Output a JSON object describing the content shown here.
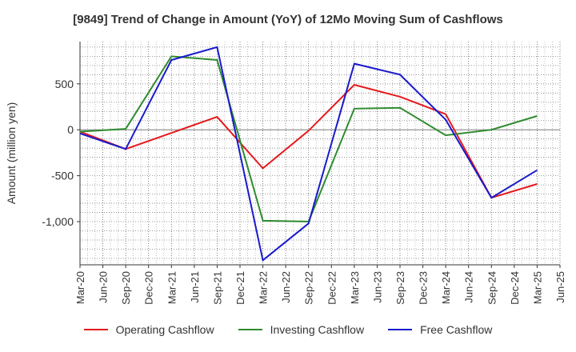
{
  "chart_data": {
    "type": "line",
    "title": "[9849]  Trend of Change in Amount (YoY) of 12Mo Moving Sum of Cashflows",
    "xlabel": "",
    "ylabel": "Amount (million yen)",
    "categories": [
      "Mar-20",
      "Jun-20",
      "Sep-20",
      "Dec-20",
      "Mar-21",
      "Jun-21",
      "Sep-21",
      "Dec-21",
      "Mar-22",
      "Jun-22",
      "Sep-22",
      "Dec-22",
      "Mar-23",
      "Jun-23",
      "Sep-23",
      "Dec-23",
      "Mar-24",
      "Jun-24",
      "Sep-24",
      "Dec-24",
      "Mar-25",
      "Jun-25"
    ],
    "ylim": [
      -1470,
      960
    ],
    "yticks": [
      500,
      0,
      -500,
      -1000
    ],
    "ytick_labels": [
      "500",
      "0",
      "-500",
      "-1,000"
    ],
    "series": [
      {
        "name": "Operating Cashflow",
        "color": "#e41a1c",
        "points": [
          [
            0,
            -20
          ],
          [
            2,
            -210
          ],
          [
            6,
            140
          ],
          [
            8,
            -420
          ],
          [
            10,
            -10
          ],
          [
            12,
            490
          ],
          [
            14,
            360
          ],
          [
            16,
            170
          ],
          [
            18,
            -740
          ],
          [
            20,
            -590
          ]
        ]
      },
      {
        "name": "Investing Cashflow",
        "color": "#2e8b2e",
        "points": [
          [
            0,
            -20
          ],
          [
            2,
            10
          ],
          [
            4,
            800
          ],
          [
            6,
            760
          ],
          [
            8,
            -990
          ],
          [
            10,
            -1000
          ],
          [
            12,
            230
          ],
          [
            14,
            240
          ],
          [
            16,
            -60
          ],
          [
            18,
            0
          ],
          [
            20,
            150
          ]
        ]
      },
      {
        "name": "Free Cashflow",
        "color": "#1a1acc",
        "points": [
          [
            0,
            -40
          ],
          [
            2,
            -210
          ],
          [
            4,
            760
          ],
          [
            6,
            900
          ],
          [
            8,
            -1420
          ],
          [
            10,
            -1020
          ],
          [
            12,
            720
          ],
          [
            14,
            600
          ],
          [
            16,
            110
          ],
          [
            18,
            -740
          ],
          [
            20,
            -440
          ]
        ]
      }
    ],
    "legend_position": "bottom"
  }
}
